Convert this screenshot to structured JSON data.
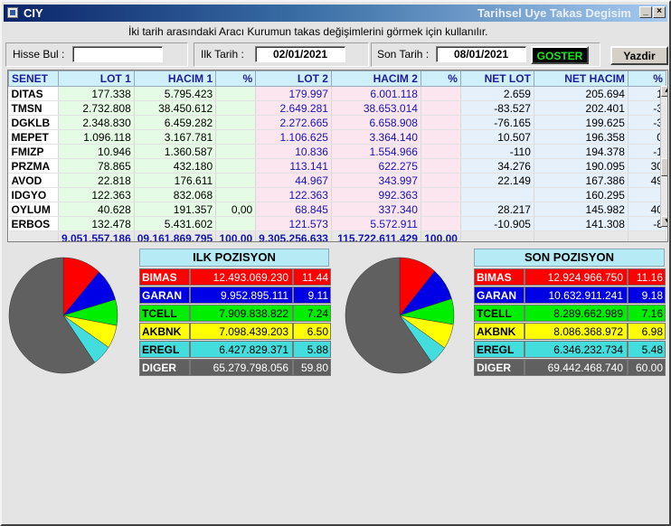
{
  "app": {
    "icon": "app-icon",
    "short_title": "CIY",
    "window_title": "Tarihsel Uye Takas Degisim"
  },
  "help_text": "İki tarih arasındaki  Aracı Kurumun takas değişimlerini görmek için kullanılır.",
  "filters": {
    "search_label": "Hisse Bul :",
    "search_value": "",
    "start_label": "Ilk Tarih :",
    "start_value": "02/01/2021",
    "end_label": "Son Tarih :",
    "end_value": "08/01/2021",
    "show_label": "GOSTER",
    "print_label": "Yazdir"
  },
  "colors": {
    "red": "#ff0000",
    "blue": "#0000e6",
    "green": "#00ee00",
    "yellow": "#ffff00",
    "cyan": "#44dddd",
    "gray": "#606060"
  },
  "table": {
    "headers": [
      "SENET",
      "LOT 1",
      "HACIM 1",
      "%",
      "LOT 2",
      "HACIM 2",
      "%",
      "NET LOT",
      "NET HACIM",
      "%"
    ],
    "rows": [
      [
        "DITAS",
        "177.338",
        "5.795.423",
        "",
        "179.997",
        "6.001.118",
        "",
        "2.659",
        "205.694",
        "1"
      ],
      [
        "TMSN",
        "2.732.808",
        "38.450.612",
        "",
        "2.649.281",
        "38.653.014",
        "",
        "-83.527",
        "202.401",
        "-3"
      ],
      [
        "DGKLB",
        "2.348.830",
        "6.459.282",
        "",
        "2.272.665",
        "6.658.908",
        "",
        "-76.165",
        "199.625",
        "-3"
      ],
      [
        "MEPET",
        "1.096.118",
        "3.167.781",
        "",
        "1.106.625",
        "3.364.140",
        "",
        "10.507",
        "196.358",
        "0"
      ],
      [
        "FMIZP",
        "10.946",
        "1.360.587",
        "",
        "10.836",
        "1.554.966",
        "",
        "-110",
        "194.378",
        "-1"
      ],
      [
        "PRZMA",
        "78.865",
        "432.180",
        "",
        "113.141",
        "622.275",
        "",
        "34.276",
        "190.095",
        "30"
      ],
      [
        "AVOD",
        "22.818",
        "176.611",
        "",
        "44.967",
        "343.997",
        "",
        "22.149",
        "167.386",
        "49"
      ],
      [
        "IDGYO",
        "122.363",
        "832.068",
        "",
        "122.363",
        "992.363",
        "",
        "",
        "160.295",
        ""
      ],
      [
        "OYLUM",
        "40.628",
        "191.357",
        "0,00",
        "68.845",
        "337.340",
        "",
        "28.217",
        "145.982",
        "40"
      ],
      [
        "ERBOS",
        "132.478",
        "5.431.602",
        "",
        "121.573",
        "5.572.911",
        "",
        "-10.905",
        "141.308",
        "-8"
      ]
    ],
    "totals": [
      "",
      "9.051.557.186",
      "09.161.869.795",
      "100,00",
      "9.305.256.633",
      "115.722.611.429",
      "100,00",
      "",
      "",
      ""
    ]
  },
  "ilk_pozisyon": {
    "title": "ILK POZISYON",
    "rows": [
      {
        "name": "BIMAS",
        "value": "12.493.069.230",
        "pct": "11.44",
        "pct_num": 11.44,
        "color": "red"
      },
      {
        "name": "GARAN",
        "value": "9.952.895.111",
        "pct": "9.11",
        "pct_num": 9.11,
        "color": "blue"
      },
      {
        "name": "TCELL",
        "value": "7.909.838.822",
        "pct": "7.24",
        "pct_num": 7.24,
        "color": "green"
      },
      {
        "name": "AKBNK",
        "value": "7.098.439.203",
        "pct": "6.50",
        "pct_num": 6.5,
        "color": "yellow"
      },
      {
        "name": "EREGL",
        "value": "6.427.829.371",
        "pct": "5.88",
        "pct_num": 5.88,
        "color": "cyan"
      },
      {
        "name": "DIGER",
        "value": "65.279.798.056",
        "pct": "59.80",
        "pct_num": 59.8,
        "color": "gray"
      }
    ]
  },
  "son_pozisyon": {
    "title": "SON POZISYON",
    "rows": [
      {
        "name": "BIMAS",
        "value": "12.924.966.750",
        "pct": "11.16",
        "pct_num": 11.16,
        "color": "red"
      },
      {
        "name": "GARAN",
        "value": "10.632.911.241",
        "pct": "9.18",
        "pct_num": 9.18,
        "color": "blue"
      },
      {
        "name": "TCELL",
        "value": "8.289.662.989",
        "pct": "7.16",
        "pct_num": 7.16,
        "color": "green"
      },
      {
        "name": "AKBNK",
        "value": "8.086.368.972",
        "pct": "6.98",
        "pct_num": 6.98,
        "color": "yellow"
      },
      {
        "name": "EREGL",
        "value": "6.346.232.734",
        "pct": "5.48",
        "pct_num": 5.48,
        "color": "cyan"
      },
      {
        "name": "DIGER",
        "value": "69.442.468.740",
        "pct": "60.00",
        "pct_num": 60.0,
        "color": "gray"
      }
    ]
  }
}
